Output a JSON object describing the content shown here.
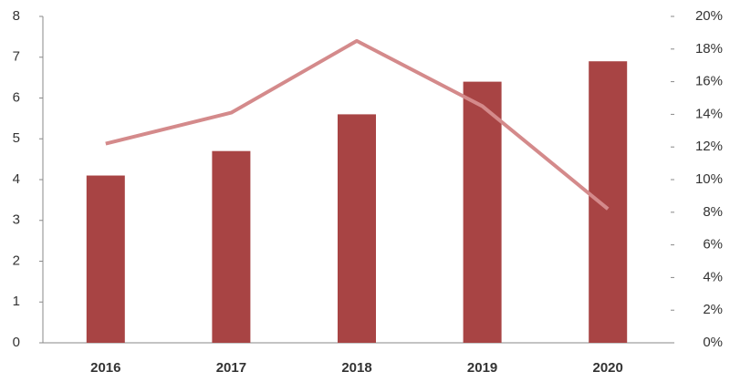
{
  "chart_data": {
    "type": "bar",
    "categories": [
      "2016",
      "2017",
      "2018",
      "2019",
      "2020"
    ],
    "series": [
      {
        "type": "bar",
        "color": "#a84444",
        "values": [
          4.1,
          4.7,
          5.6,
          6.4,
          6.9
        ]
      },
      {
        "type": "line",
        "axis": "y2",
        "color": "#d48a8b",
        "values": [
          12.2,
          14.1,
          18.5,
          14.5,
          8.2
        ]
      }
    ],
    "ylim": [
      0,
      8
    ],
    "yticks": [
      0,
      1,
      2,
      3,
      4,
      5,
      6,
      7,
      8
    ],
    "y2lim": [
      0,
      20
    ],
    "y2ticks": [
      {
        "value": 0,
        "label": "0%"
      },
      {
        "value": 2,
        "label": "2%"
      },
      {
        "value": 4,
        "label": "4%"
      },
      {
        "value": 6,
        "label": "6%"
      },
      {
        "value": 8,
        "label": "8%"
      },
      {
        "value": 10,
        "label": "10%"
      },
      {
        "value": 12,
        "label": "12%"
      },
      {
        "value": 14,
        "label": "14%"
      },
      {
        "value": 16,
        "label": "16%"
      },
      {
        "value": 18,
        "label": "18%"
      },
      {
        "value": 20,
        "label": "20%"
      }
    ]
  }
}
